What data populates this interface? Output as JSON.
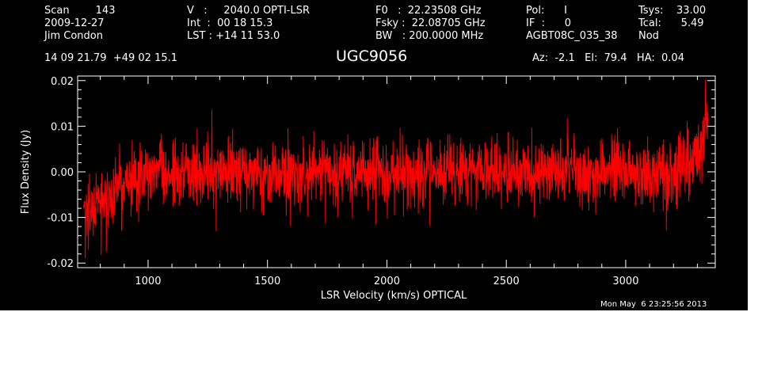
{
  "header": {
    "col1": [
      "Scan        143",
      "2009-12-27",
      "Jim Condon"
    ],
    "col2": [
      "V   :     2040.0 OPTI-LSR",
      "Int  :  00 18 15.3",
      "LST : +14 11 53.0"
    ],
    "col3": [
      "F0   :  22.23508 GHz",
      "Fsky :  22.08705 GHz",
      "BW   : 200.0000 MHz"
    ],
    "col4": [
      "Pol:      I",
      "IF  :      0",
      "AGBT08C_035_38"
    ],
    "col5": [
      "Tsys:    33.00",
      "Tcal:      5.49",
      "Nod"
    ],
    "coords": "14 09 21.79  +49 02 15.1",
    "source": "UGC9056",
    "az_el_ha": "Az:  -2.1   El:  79.4   HA:  0.04"
  },
  "footer": {
    "timestamp": "Mon May  6 23:25:56 2013"
  },
  "colors": {
    "background": "#000000",
    "foreground": "#ffffff",
    "trace": "#ff0000",
    "page": "#ffffff"
  },
  "chart_data": {
    "type": "line",
    "title": "UGC9056",
    "xlabel": "LSR Velocity (km/s) OPTICAL",
    "ylabel": "Flux Density (Jy)",
    "xlim": [
      705,
      3375
    ],
    "ylim": [
      -0.021,
      0.021
    ],
    "xticks": [
      1000,
      1500,
      2000,
      2500,
      3000
    ],
    "xtick_labels": [
      "1000",
      "1500",
      "2000",
      "2500",
      "3000"
    ],
    "yticks": [
      -0.02,
      -0.01,
      0.0,
      0.01,
      0.02
    ],
    "ytick_labels": [
      "-0.02",
      "-0.01",
      "0.00",
      "0.01",
      "0.02"
    ],
    "grid": false,
    "series": [
      {
        "color": "#ff0000",
        "x": [
          730,
          1000,
          1250,
          1500,
          1750,
          2000,
          2250,
          2500,
          2750,
          3000,
          3200,
          3280,
          3320,
          3345
        ],
        "y": [
          -0.008,
          0.0,
          0.0,
          0.0,
          0.0,
          0.0,
          0.0,
          0.0,
          0.0,
          0.0,
          0.0,
          0.002,
          0.008,
          0.013
        ],
        "noise_rms_jy": 0.0035
      }
    ]
  }
}
